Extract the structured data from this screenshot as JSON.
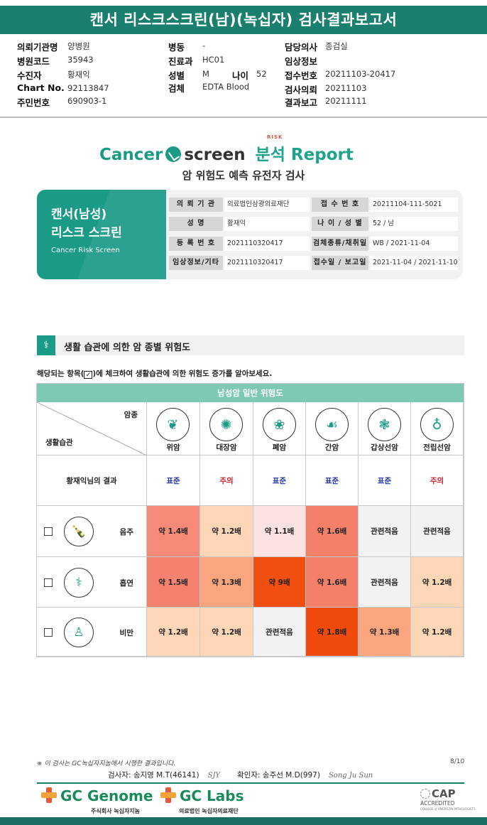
{
  "title": "캔서 리스크스크린(남)(녹십자) 검사결과보고서",
  "header": {
    "col1": [
      {
        "label": "의뢰기관명",
        "value": "양병원"
      },
      {
        "label": "병원코드",
        "value": "35943"
      },
      {
        "label": "수진자",
        "value": "황재익"
      },
      {
        "label": "Chart No.",
        "value": "92113847"
      },
      {
        "label": "주민번호",
        "value": "690903-1"
      }
    ],
    "col2": [
      {
        "label": "병동",
        "value": "-"
      },
      {
        "label": "진료과",
        "value": "HC01"
      },
      {
        "label": "성별",
        "value": "M"
      },
      {
        "label": "검체",
        "value": "EDTA Blood"
      }
    ],
    "age_label": "나이",
    "age_value": "52",
    "col3": [
      {
        "label": "담당의사",
        "value": "종검실"
      },
      {
        "label": "임상정보",
        "value": ""
      },
      {
        "label": "접수번호",
        "value": "20211103-20417"
      },
      {
        "label": "검사의뢰",
        "value": "20211103"
      },
      {
        "label": "결과보고",
        "value": "20211111"
      }
    ]
  },
  "brand": {
    "cancer": "Cancer",
    "risk": "RISK",
    "screen": "screen",
    "report": "분석 Report",
    "subtitle": "암 위험도 예측 유전자 검사"
  },
  "card": {
    "line1": "캔서(남성)",
    "line2": "리스크 스크린",
    "line3": "Cancer Risk Screen"
  },
  "info": {
    "rows": [
      {
        "l1": "의 뢰 기 관",
        "v1": "의료법인삼광의료재단",
        "l2": "접 수 번 호",
        "v2": "20211104-111-5021"
      },
      {
        "l1": "성 명",
        "v1": "황재익",
        "l2": "나 이 / 성 별",
        "v2": "52 / 남"
      },
      {
        "l1": "등 록 번 호",
        "v1": "2021110320417",
        "l2": "검체종류/채취일",
        "v2": "WB / 2021-11-04"
      },
      {
        "l1": "임상정보/기타",
        "v1": "2021110320417",
        "l2": "접수일 / 보고일",
        "v2": "2021-11-04 / 2021-11-10"
      }
    ]
  },
  "section": {
    "title": "생활 습관에 의한 암 종별 위험도",
    "instr_pre": "해당되는 항목(",
    "instr_check": "✓",
    "instr_post": ")에 체크하여 생활습관에 의한 위험도 증가를 알아보세요."
  },
  "table": {
    "header": "남성암 일반 위험도",
    "corner_top": "암종",
    "corner_bottom": "생활습관",
    "organs": [
      {
        "name": "위암",
        "icon": "stomach-icon",
        "glyph": "❦"
      },
      {
        "name": "대장암",
        "icon": "colon-icon",
        "glyph": "✺"
      },
      {
        "name": "폐암",
        "icon": "lung-icon",
        "glyph": "❀"
      },
      {
        "name": "간암",
        "icon": "liver-icon",
        "glyph": "☙"
      },
      {
        "name": "갑상선암",
        "icon": "thyroid-icon",
        "glyph": "❃"
      },
      {
        "name": "전립선암",
        "icon": "prostate-icon",
        "glyph": "♁"
      }
    ],
    "result_label": "황재익님의 결과",
    "results": [
      {
        "text": "표준",
        "color": "#2233aa"
      },
      {
        "text": "주의",
        "color": "#d0202a"
      },
      {
        "text": "표준",
        "color": "#2233aa"
      },
      {
        "text": "표준",
        "color": "#2233aa"
      },
      {
        "text": "표준",
        "color": "#2233aa"
      },
      {
        "text": "주의",
        "color": "#d0202a"
      }
    ],
    "rows": [
      {
        "label": "음주",
        "icon": "alcohol-icon",
        "glyph": "🍾",
        "cells": [
          {
            "text": "약 1.4배",
            "bg": "#f58a78"
          },
          {
            "text": "약 1.2배",
            "bg": "#fcd6b6"
          },
          {
            "text": "약 1.1배",
            "bg": "#fde2e2"
          },
          {
            "text": "약 1.6배",
            "bg": "#f5806a"
          },
          {
            "text": "관련적음",
            "bg": "#f2f2f2"
          },
          {
            "text": "관련적음",
            "bg": "#f2f2f2"
          }
        ]
      },
      {
        "label": "흡연",
        "icon": "cigarette-icon",
        "glyph": "⚕",
        "cells": [
          {
            "text": "약 1.5배",
            "bg": "#f5826e"
          },
          {
            "text": "약 1.3배",
            "bg": "#f9a67e"
          },
          {
            "text": "약 9배",
            "bg": "#f04f10"
          },
          {
            "text": "약 1.6배",
            "bg": "#f5806a"
          },
          {
            "text": "관련적음",
            "bg": "#f2f2f2"
          },
          {
            "text": "약 1.2배",
            "bg": "#fcd6b6"
          }
        ]
      },
      {
        "label": "비만",
        "icon": "body-icon",
        "glyph": "♙",
        "cells": [
          {
            "text": "약 1.2배",
            "bg": "#fcd6b6"
          },
          {
            "text": "약 1.2배",
            "bg": "#fcd6b6"
          },
          {
            "text": "관련적음",
            "bg": "#f2f2f2"
          },
          {
            "text": "약 1.8배",
            "bg": "#f04a0c"
          },
          {
            "text": "약 1.3배",
            "bg": "#f9a67e"
          },
          {
            "text": "약 1.2배",
            "bg": "#fcd6b6"
          }
        ]
      }
    ]
  },
  "footer": {
    "note": "※ 이 검사는 GC녹십자지놈에서 시행한 결과입니다.",
    "page": "8/10",
    "examiner": "검사자: 송지영 M.T(46141)",
    "examiner_sig": "SJY",
    "confirmer": "확인자: 송주선 M.D(997)",
    "confirmer_sig": "Song Ju Sun",
    "logo1": "GC Genome",
    "logo1_sub": "주식회사 녹십자지놈",
    "logo2": "GC Labs",
    "logo2_sub": "의료법인 녹십자의료재단",
    "cap_title": "CAP",
    "cap_accredited": "ACCREDITED",
    "cap_college": "COLLEGE of AMERICAN PATHOLOGISTS"
  }
}
